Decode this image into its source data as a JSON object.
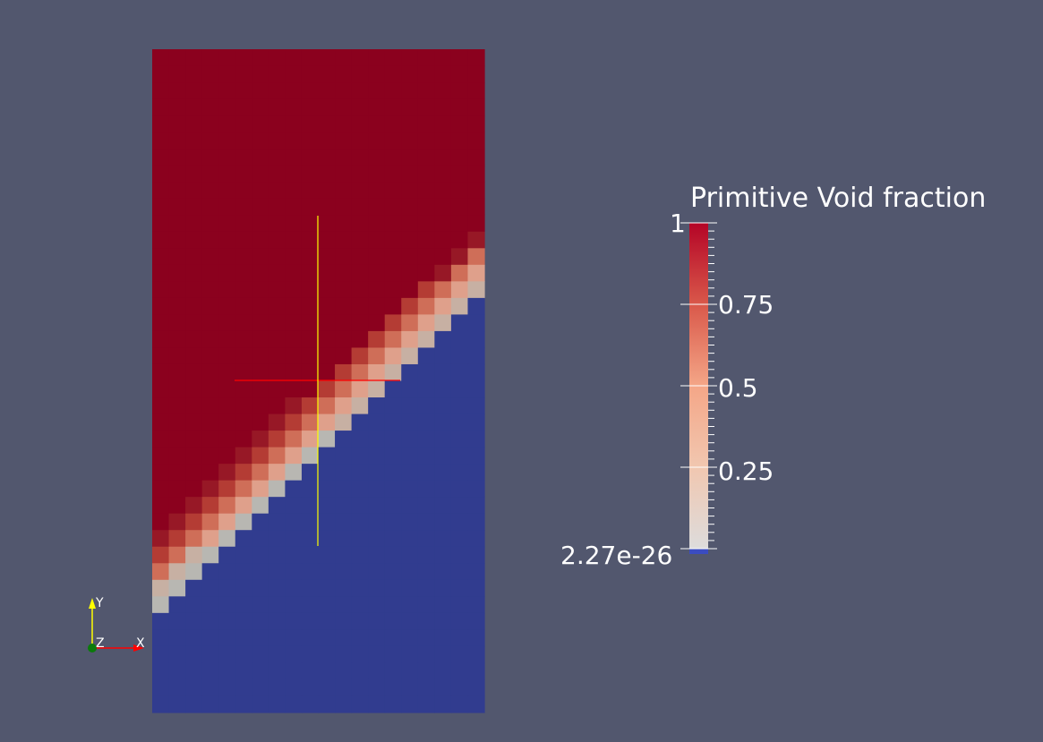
{
  "colorbar": {
    "title": "Primitive Void fraction",
    "labels": {
      "max": "1",
      "q3": "0.75",
      "mid": "0.5",
      "q1": "0.25",
      "min": "2.27e-26"
    },
    "colors": {
      "high": "#8b011e",
      "mid": "#f4a687",
      "low": "#dddcdc",
      "below_range": "#3b4cc0"
    }
  },
  "field": {
    "colors": {
      "void_full": "#8b011e",
      "void_empty": "#313c8f"
    }
  },
  "axes": {
    "x": "X",
    "y": "Y",
    "z": "Z",
    "colors": {
      "x": "#ff0000",
      "y": "#ffff00",
      "z": "#008000"
    }
  },
  "probe": {
    "colors": {
      "horizontal": "#ff0000",
      "vertical": "#ffff00"
    }
  },
  "background": "#52576e"
}
